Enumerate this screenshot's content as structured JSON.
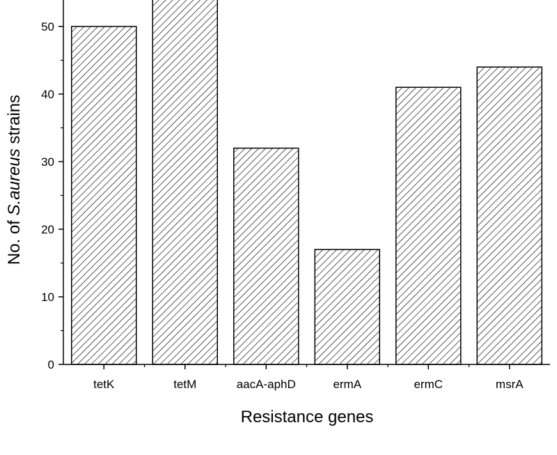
{
  "chart_data": {
    "type": "bar",
    "categories": [
      "tetK",
      "tetM",
      "aacA-aphD",
      "ermA",
      "ermC",
      "msrA"
    ],
    "values": [
      50,
      54,
      32,
      17,
      41,
      44
    ],
    "title": "",
    "xlabel": "Resistance genes",
    "ylabel_parts": {
      "before": "No. of ",
      "italic": "S.aureus",
      "after": " strains"
    },
    "ylim": [
      0,
      54
    ],
    "yticks": [
      0,
      10,
      20,
      30,
      40,
      50
    ],
    "grid": false,
    "legend": "none",
    "bar_fill": "diagonal-hatch",
    "bar_color": "#000000"
  }
}
